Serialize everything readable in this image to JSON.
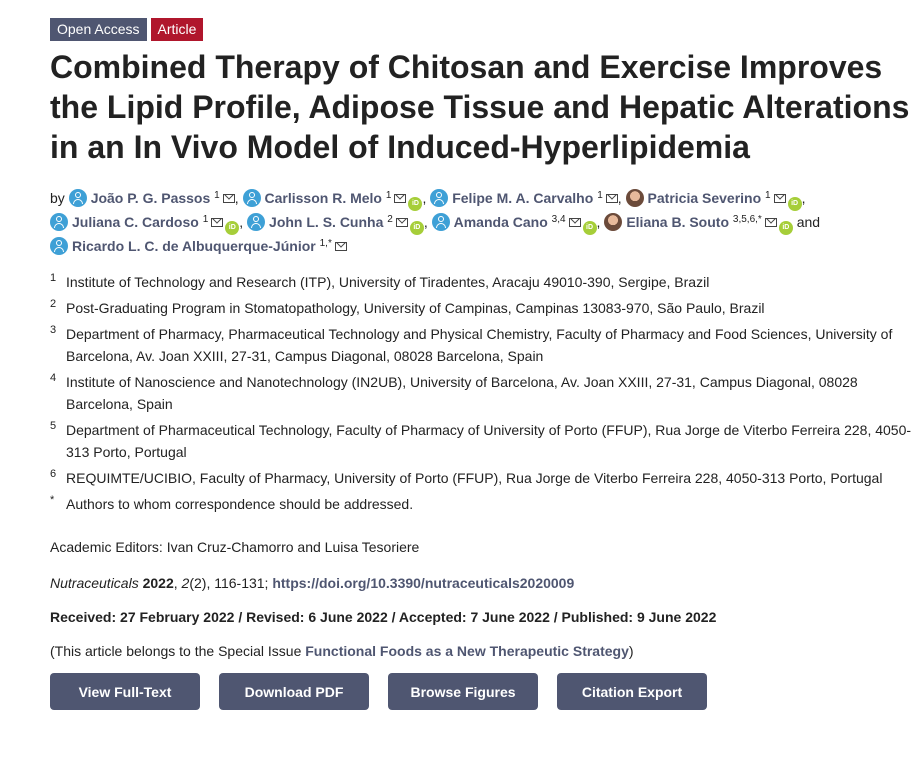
{
  "badges": {
    "open_access": "Open Access",
    "article": "Article"
  },
  "title": "Combined Therapy of Chitosan and Exercise Improves the Lipid Profile, Adipose Tissue and Hepatic Alterations in an In Vivo Model of Induced-Hyperlipidemia",
  "authors": {
    "by": "by",
    "and": "and",
    "list": [
      {
        "name": "João P. G. Passos",
        "sup": "1",
        "sep": ", "
      },
      {
        "name": "Carlisson R. Melo",
        "sup": "1",
        "sep": ", "
      },
      {
        "name": "Felipe M. A. Carvalho",
        "sup": "1",
        "sep": ", "
      },
      {
        "name": "Patricia Severino",
        "sup": "1",
        "sep": ", "
      },
      {
        "name": "Juliana C. Cardoso",
        "sup": "1",
        "sep": ", "
      },
      {
        "name": "John L. S. Cunha",
        "sup": "2",
        "sep": ", "
      },
      {
        "name": "Amanda Cano",
        "sup": "3,4",
        "sep": ", "
      },
      {
        "name": "Eliana B. Souto",
        "sup": "3,5,6,*",
        "sep": " "
      },
      {
        "name": "Ricardo L. C. de Albuquerque-Júnior",
        "sup": "1,*",
        "sep": ""
      }
    ]
  },
  "affiliations": [
    {
      "num": "1",
      "text": "Institute of Technology and Research (ITP), University of Tiradentes, Aracaju 49010-390, Sergipe, Brazil"
    },
    {
      "num": "2",
      "text": "Post-Graduating Program in Stomatopathology, University of Campinas, Campinas 13083-970, São Paulo, Brazil"
    },
    {
      "num": "3",
      "text": "Department of Pharmacy, Pharmaceutical Technology and Physical Chemistry, Faculty of Pharmacy and Food Sciences, University of Barcelona, Av. Joan XXIII, 27-31, Campus Diagonal, 08028 Barcelona, Spain"
    },
    {
      "num": "4",
      "text": "Institute of Nanoscience and Nanotechnology (IN2UB), University of Barcelona, Av. Joan XXIII, 27-31, Campus Diagonal, 08028 Barcelona, Spain"
    },
    {
      "num": "5",
      "text": "Department of Pharmaceutical Technology, Faculty of Pharmacy of University of Porto (FFUP), Rua Jorge de Viterbo Ferreira 228, 4050-313 Porto, Portugal"
    },
    {
      "num": "6",
      "text": "REQUIMTE/UCIBIO, Faculty of Pharmacy, University of Porto (FFUP), Rua Jorge de Viterbo Ferreira 228, 4050-313 Porto, Portugal"
    },
    {
      "num": "*",
      "text": "Authors to whom correspondence should be addressed."
    }
  ],
  "editors": "Academic Editors: Ivan Cruz-Chamorro and Luisa Tesoriere",
  "citation": {
    "journal": "Nutraceuticals",
    "year": "2022",
    "volume": "2",
    "issue_pages": "(2), 116-131; ",
    "doi": "https://doi.org/10.3390/nutraceuticals2020009"
  },
  "dates": "Received: 27 February 2022 / Revised: 6 June 2022 / Accepted: 7 June 2022 / Published: 9 June 2022",
  "special_issue": {
    "prefix": "(This article belongs to the Special Issue ",
    "name": "Functional Foods as a New Therapeutic Strategy",
    "suffix": ")"
  },
  "buttons": {
    "full_text": "View Full-Text",
    "pdf": "Download PDF",
    "figures": "Browse Figures",
    "citation": "Citation Export"
  },
  "colors": {
    "accent": "#4f5671",
    "article_badge": "#b0162c",
    "orcid": "#a6ce39",
    "author_icon": "#3ea0d6"
  }
}
